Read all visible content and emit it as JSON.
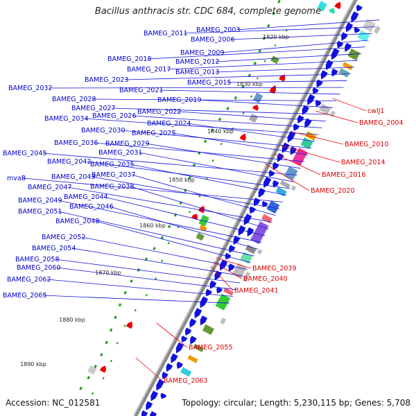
{
  "title": "Bacillus anthracis str. CDC 684, complete genome",
  "footer": {
    "accession": "Accession: NC_012581",
    "topology": "Topology: circular; Length: 5,230,115 bp; Genes: 5,708"
  },
  "colors": {
    "forward_label": "#0000cc",
    "reverse_label": "#dd0000",
    "backbone": "#777777"
  },
  "kbp_ticks": [
    "1820 kbp",
    "1830 kbp",
    "1840 kbp",
    "1850 kbp",
    "1860 kbp",
    "1870 kbp",
    "1880 kbp",
    "1890 kbp"
  ],
  "forward_labels": [
    "BAMEG_2003",
    "BAMEG_2011",
    "BAMEG_2006",
    "BAMEG_2009",
    "BAMEG_2018",
    "BAMEG_2012",
    "BAMEG_2017",
    "BAMEG_2013",
    "BAMEG_2023",
    "BAMEG_2015",
    "BAMEG_2032",
    "BAMEG_2021",
    "BAMEG_2028",
    "BAMEG_2019",
    "BAMEG_2027",
    "BAMEG_2022",
    "BAMEG_2026",
    "BAMEG_2034",
    "BAMEG_2024",
    "BAMEG_2030",
    "BAMEG_2025",
    "BAMEG_2036",
    "BAMEG_2029",
    "BAMEG_2045",
    "BAMEG_2031",
    "BAMEG_2042",
    "BAMEG_2035",
    "mvaB",
    "BAMEG_2043",
    "BAMEG_2037",
    "BAMEG_2047",
    "BAMEG_2038",
    "BAMEG_2044",
    "BAMEG_2049",
    "BAMEG_2046",
    "BAMEG_2051",
    "BAMEG_2048",
    "BAMEG_2052",
    "BAMEG_2054",
    "BAMEG_2058",
    "BAMEG_2060",
    "BAMEG_2062",
    "BAMEG_2065"
  ],
  "reverse_labels": [
    "cwlJ1",
    "BAMEG_2004",
    "BAMEG_2010",
    "BAMEG_2014",
    "BAMEG_2016",
    "BAMEG_2020",
    "BAMEG_2039",
    "BAMEG_2040",
    "BAMEG_2041",
    "BAMEG_2055",
    "BAMEG_2063"
  ]
}
